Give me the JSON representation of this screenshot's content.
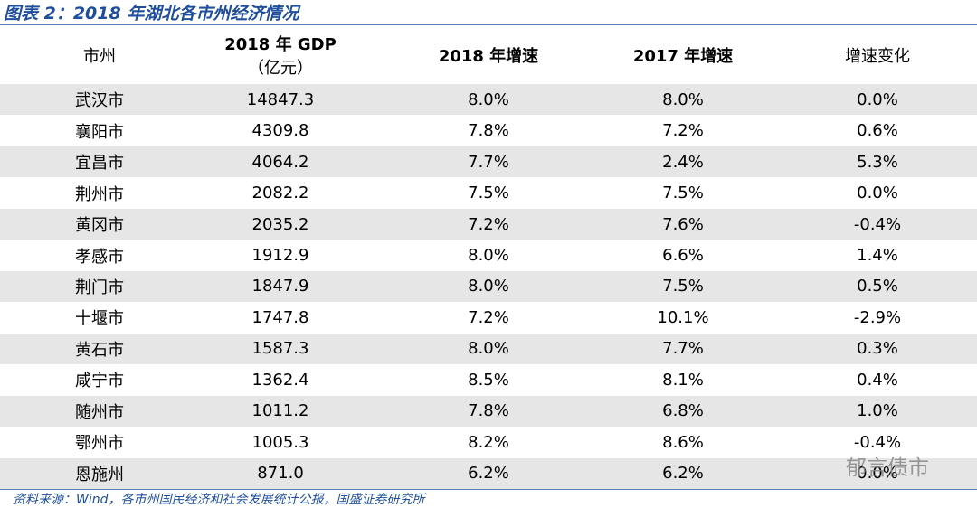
{
  "title": "图表 2：2018 年湖北各市州经济情况",
  "table": {
    "header": [
      [
        "市州"
      ],
      [
        "2018 年 GDP",
        "（亿元）"
      ],
      [
        "2018 年增速"
      ],
      [
        "2017 年增速"
      ],
      [
        "增速变化"
      ]
    ],
    "rows": [
      [
        "武汉市",
        "14847.3",
        "8.0%",
        "8.0%",
        "0.0%"
      ],
      [
        "襄阳市",
        "4309.8",
        "7.8%",
        "7.2%",
        "0.6%"
      ],
      [
        "宜昌市",
        "4064.2",
        "7.7%",
        "2.4%",
        "5.3%"
      ],
      [
        "荆州市",
        "2082.2",
        "7.5%",
        "7.5%",
        "0.0%"
      ],
      [
        "黄冈市",
        "2035.2",
        "7.2%",
        "7.6%",
        "-0.4%"
      ],
      [
        "孝感市",
        "1912.9",
        "8.0%",
        "6.6%",
        "1.4%"
      ],
      [
        "荆门市",
        "1847.9",
        "8.0%",
        "7.5%",
        "0.5%"
      ],
      [
        "十堰市",
        "1747.8",
        "7.2%",
        "10.1%",
        "-2.9%"
      ],
      [
        "黄石市",
        "1587.3",
        "8.0%",
        "7.7%",
        "0.3%"
      ],
      [
        "咸宁市",
        "1362.4",
        "8.5%",
        "8.1%",
        "0.4%"
      ],
      [
        "随州市",
        "1011.2",
        "7.8%",
        "6.8%",
        "1.0%"
      ],
      [
        "鄂州市",
        "1005.3",
        "8.2%",
        "8.6%",
        "-0.4%"
      ],
      [
        "恩施州",
        "871.0",
        "6.2%",
        "6.2%",
        "0.0%"
      ]
    ]
  },
  "source": "资料来源：Wind，各市州国民经济和社会发展统计公报，国盛证券研究所",
  "watermark": "郁言债市"
}
